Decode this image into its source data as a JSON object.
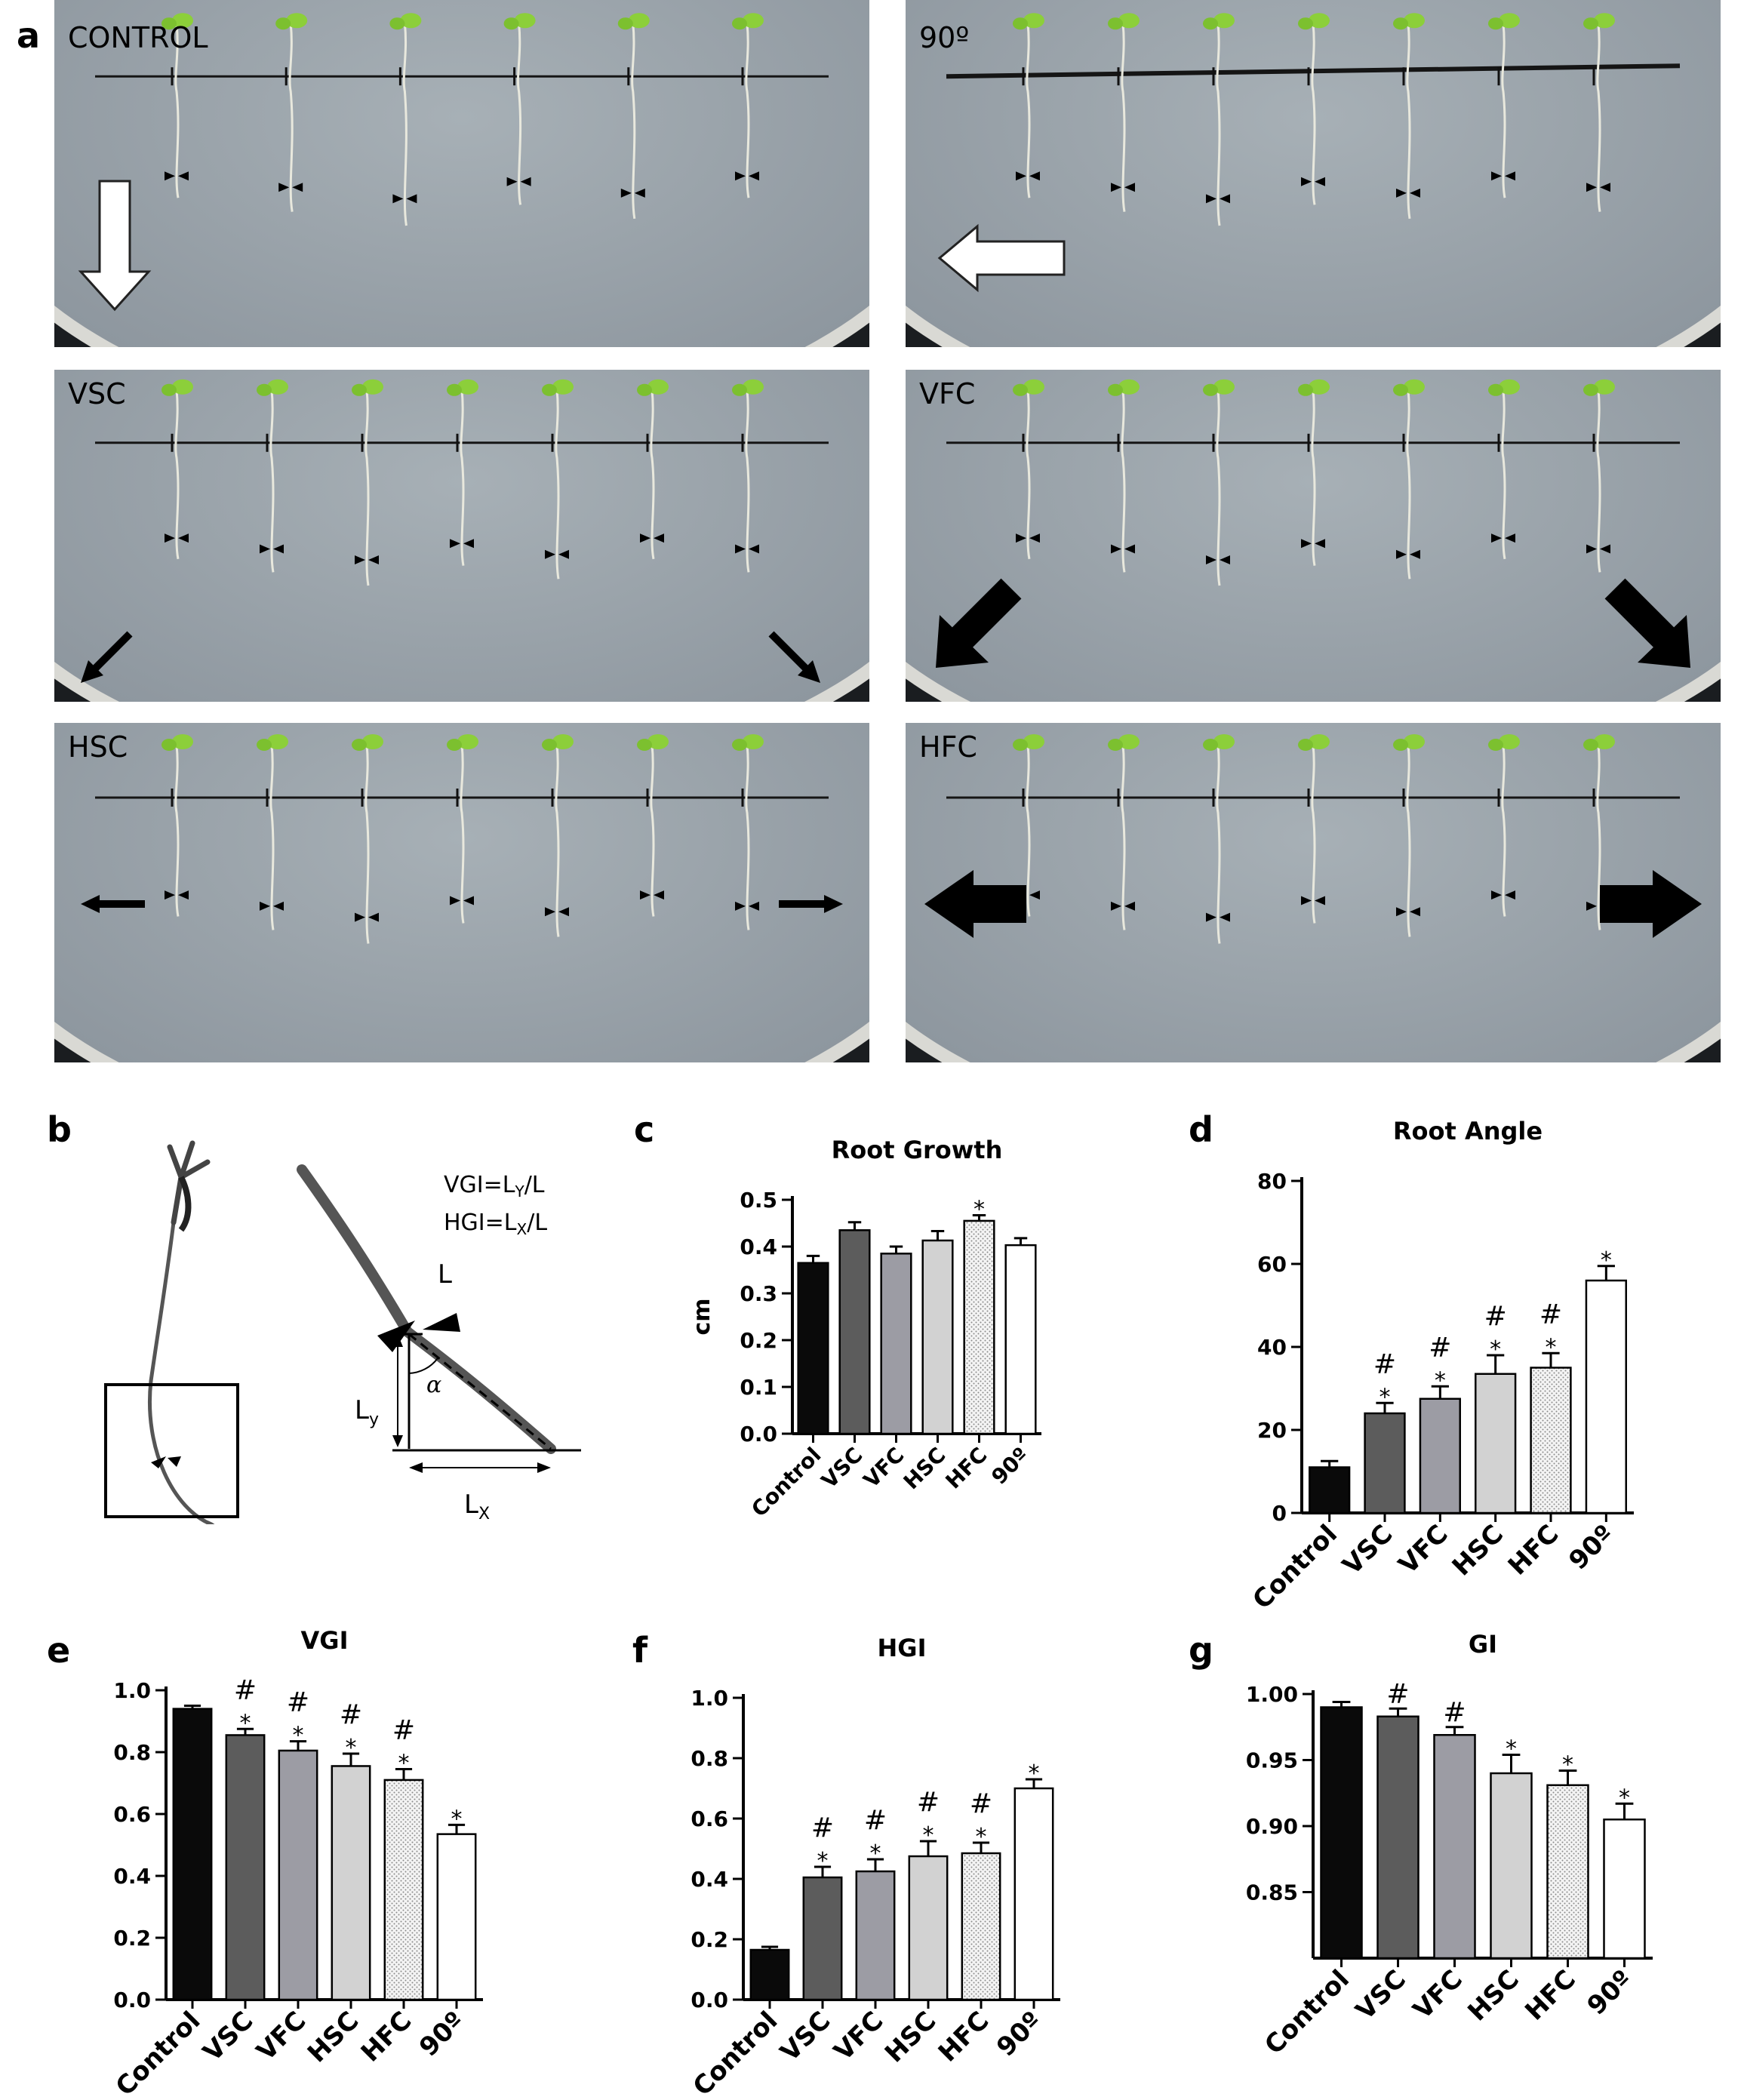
{
  "panel_a": {
    "letter": "a",
    "plates": [
      {
        "label": "CONTROL",
        "arrow": "down-outline",
        "seedlings": 6
      },
      {
        "label": "90º",
        "arrow": "left-outline",
        "seedlings": 7
      },
      {
        "label": "VSC",
        "arrow": "diagonal-thin",
        "seedlings": 7
      },
      {
        "label": "VFC",
        "arrow": "diagonal-thick",
        "seedlings": 7
      },
      {
        "label": "HSC",
        "arrow": "horizontal-thin",
        "seedlings": 7
      },
      {
        "label": "HFC",
        "arrow": "horizontal-thick",
        "seedlings": 7
      }
    ]
  },
  "panel_b": {
    "letter": "b",
    "formula_vgi": "VGI=L",
    "formula_vgi_sub": "Y",
    "formula_vgi_tail": "/L",
    "formula_hgi": "HGI=L",
    "formula_hgi_sub": "X",
    "formula_hgi_tail": "/L",
    "label_L": "L",
    "label_Ly": "L",
    "label_Ly_sub": "y",
    "label_Lx": "L",
    "label_Lx_sub": "X",
    "label_alpha": "α"
  },
  "colors": {
    "Control": "#0a0a0a",
    "VSC": "#5c5c5c",
    "VFC": "#9c9ca4",
    "HSC": "#d2d2d2",
    "HFC": "#ececec",
    "90º": "#ffffff"
  },
  "chart_data": [
    {
      "panel": "c",
      "type": "bar",
      "title": "Root Growth",
      "ylabel": "cm",
      "categories": [
        "Control",
        "VSC",
        "VFC",
        "HSC",
        "HFC",
        "90º"
      ],
      "values": [
        0.365,
        0.435,
        0.385,
        0.413,
        0.455,
        0.403
      ],
      "errors": [
        0.015,
        0.017,
        0.015,
        0.02,
        0.012,
        0.015
      ],
      "marks": [
        "",
        "",
        "",
        "",
        "*",
        ""
      ],
      "ylim": [
        0,
        0.5
      ],
      "yticks": [
        "0.0",
        "0.1",
        "0.2",
        "0.3",
        "0.4",
        "0.5"
      ],
      "patterned": [
        "HFC"
      ]
    },
    {
      "panel": "d",
      "type": "bar",
      "title": "Root Angle",
      "ylabel": "",
      "categories": [
        "Control",
        "VSC",
        "VFC",
        "HSC",
        "HFC",
        "90º"
      ],
      "values": [
        11,
        24,
        27.5,
        33.5,
        35,
        56
      ],
      "errors": [
        1.5,
        2.5,
        3,
        4.5,
        3.5,
        3.5
      ],
      "marks": [
        "",
        "#\n*",
        "#\n*",
        "#\n*",
        "#\n*",
        "*"
      ],
      "ylim": [
        0,
        80
      ],
      "yticks": [
        "0",
        "20",
        "40",
        "60",
        "80"
      ],
      "patterned": [
        "HFC"
      ]
    },
    {
      "panel": "e",
      "type": "bar",
      "title": "VGI",
      "ylabel": "",
      "categories": [
        "Control",
        "VSC",
        "VFC",
        "HSC",
        "HFC",
        "90º"
      ],
      "values": [
        0.94,
        0.855,
        0.805,
        0.755,
        0.71,
        0.535
      ],
      "errors": [
        0.01,
        0.02,
        0.03,
        0.04,
        0.035,
        0.03
      ],
      "marks": [
        "",
        "#\n*",
        "#\n*",
        "#\n*",
        "#\n*",
        "*"
      ],
      "ylim": [
        0,
        1.0
      ],
      "yticks": [
        "0.0",
        "0.2",
        "0.4",
        "0.6",
        "0.8",
        "1.0"
      ],
      "patterned": [
        "HFC"
      ]
    },
    {
      "panel": "f",
      "type": "bar",
      "title": "HGI",
      "ylabel": "",
      "categories": [
        "Control",
        "VSC",
        "VFC",
        "HSC",
        "HFC",
        "90º"
      ],
      "values": [
        0.165,
        0.405,
        0.425,
        0.475,
        0.485,
        0.7
      ],
      "errors": [
        0.01,
        0.035,
        0.04,
        0.05,
        0.035,
        0.03
      ],
      "marks": [
        "",
        "#\n*",
        "#\n*",
        "#\n*",
        "#\n*",
        "*"
      ],
      "ylim": [
        0,
        1.0
      ],
      "yticks": [
        "0.0",
        "0.2",
        "0.4",
        "0.6",
        "0.8",
        "1.0"
      ],
      "patterned": [
        "HFC"
      ]
    },
    {
      "panel": "g",
      "type": "bar",
      "title": "GI",
      "ylabel": "",
      "categories": [
        "Control",
        "VSC",
        "VFC",
        "HSC",
        "HFC",
        "90º"
      ],
      "values": [
        0.99,
        0.983,
        0.969,
        0.94,
        0.931,
        0.905
      ],
      "errors": [
        0.004,
        0.006,
        0.006,
        0.014,
        0.011,
        0.012
      ],
      "marks": [
        "",
        "#",
        "#",
        "*",
        "*",
        "*"
      ],
      "ylim": [
        0.8,
        1.0
      ],
      "yticks": [
        "0.85",
        "0.90",
        "0.95",
        "1.00"
      ],
      "patterned": [
        "HFC"
      ]
    }
  ]
}
